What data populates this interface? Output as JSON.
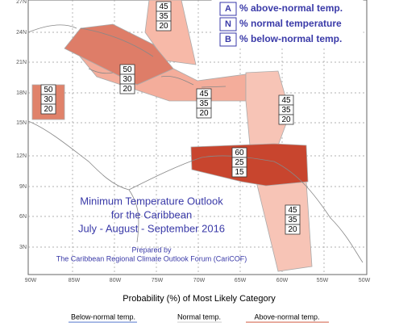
{
  "legend": [
    {
      "letter": "A",
      "text": "% above-normal temp."
    },
    {
      "letter": "N",
      "text": "% normal temperature"
    },
    {
      "letter": "B",
      "text": "% below-normal temp."
    }
  ],
  "regions": [
    {
      "above": 45,
      "normal": 35,
      "below": 20
    },
    {
      "above": 50,
      "normal": 30,
      "below": 20
    },
    {
      "above": 50,
      "normal": 30,
      "below": 20
    },
    {
      "above": 45,
      "normal": 35,
      "below": 20
    },
    {
      "above": 45,
      "normal": 35,
      "below": 20
    },
    {
      "above": 60,
      "normal": 25,
      "below": 15
    },
    {
      "above": 45,
      "normal": 35,
      "below": 20
    }
  ],
  "latitude_labels": [
    "27N",
    "24N",
    "21N",
    "18N",
    "15N",
    "12N",
    "9N",
    "6N",
    "3N"
  ],
  "longitude_labels": [
    "90W",
    "85W",
    "80W",
    "75W",
    "70W",
    "65W",
    "60W",
    "55W",
    "50W"
  ],
  "title": [
    "Minimum Temperature Outlook",
    "for the Caribbean",
    "July - August - September 2016"
  ],
  "credit": [
    "Prepared by",
    "The Caribbean Regional Climate Outlook Forum (CariCOF)"
  ],
  "footer": {
    "title": "Probability (%) of Most Likely Category",
    "categories": [
      "Below-normal temp.",
      "Normal temp.",
      "Above-normal temp."
    ]
  }
}
